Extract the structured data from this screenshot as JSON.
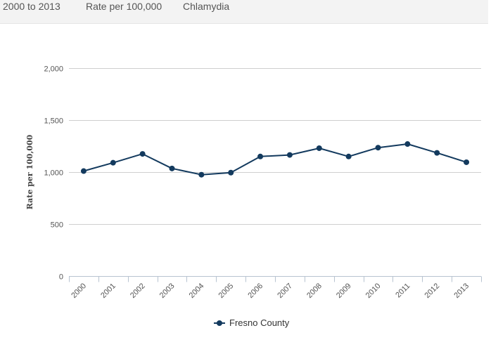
{
  "header": {
    "date_range": "2000 to 2013",
    "measure": "Rate per 100,000",
    "indicator": "Chlamydia"
  },
  "chart_data": {
    "type": "line",
    "title": "",
    "xlabel": "",
    "ylabel": "Rate per 100,000",
    "ylim": [
      0,
      2000
    ],
    "y_ticks": [
      "0",
      "500",
      "1,000",
      "1,500",
      "2,000"
    ],
    "y_tick_values": [
      0,
      500,
      1000,
      1500,
      2000
    ],
    "categories": [
      "2000",
      "2001",
      "2002",
      "2003",
      "2004",
      "2005",
      "2006",
      "2007",
      "2008",
      "2009",
      "2010",
      "2011",
      "2012",
      "2013"
    ],
    "grid": "horizontal",
    "legend_position": "bottom-center",
    "series": [
      {
        "name": "Fresno County",
        "color": "#133a5e",
        "values": [
          1010,
          1090,
          1175,
          1035,
          975,
          995,
          1150,
          1165,
          1230,
          1150,
          1235,
          1270,
          1185,
          1095
        ]
      }
    ]
  }
}
